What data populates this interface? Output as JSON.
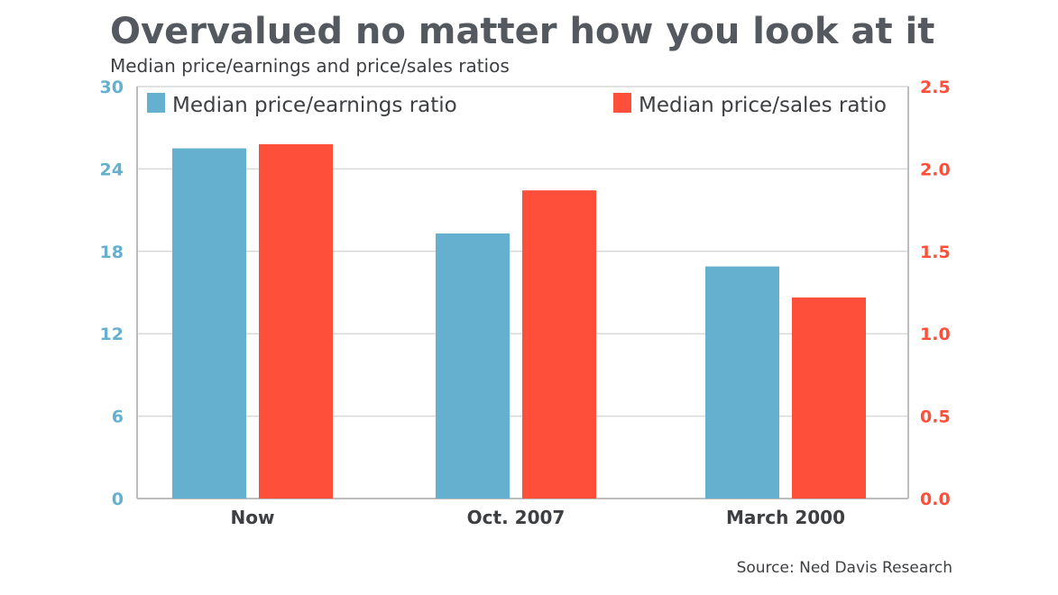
{
  "chart_data": {
    "type": "bar",
    "title": "Overvalued no matter how you look at it",
    "subtitle": "Median price/earnings and price/sales ratios",
    "categories": [
      "Now",
      "Oct. 2007",
      "March 2000"
    ],
    "series": [
      {
        "name": "Median price/earnings ratio",
        "axis": "left",
        "color": "#65b0cf",
        "values": [
          25.5,
          19.3,
          16.9
        ]
      },
      {
        "name": "Median price/sales ratio",
        "axis": "right",
        "color": "#fd4f39",
        "values": [
          2.15,
          1.87,
          1.22
        ]
      }
    ],
    "y_left": {
      "label": "",
      "ticks": [
        "0",
        "6",
        "12",
        "18",
        "24",
        "30"
      ],
      "ylim": [
        0,
        30
      ],
      "color": "#65b0cf"
    },
    "y_right": {
      "label": "",
      "ticks": [
        "0.0",
        "0.5",
        "1.0",
        "1.5",
        "2.0",
        "2.5"
      ],
      "ylim": [
        0,
        2.5
      ],
      "color": "#fd4f39"
    },
    "grid": true,
    "legend": "top",
    "source": "Source: Ned Davis Research"
  },
  "colors": {
    "title": "#54585f",
    "text": "#3d3f42",
    "grid": "#d9d9d9"
  }
}
